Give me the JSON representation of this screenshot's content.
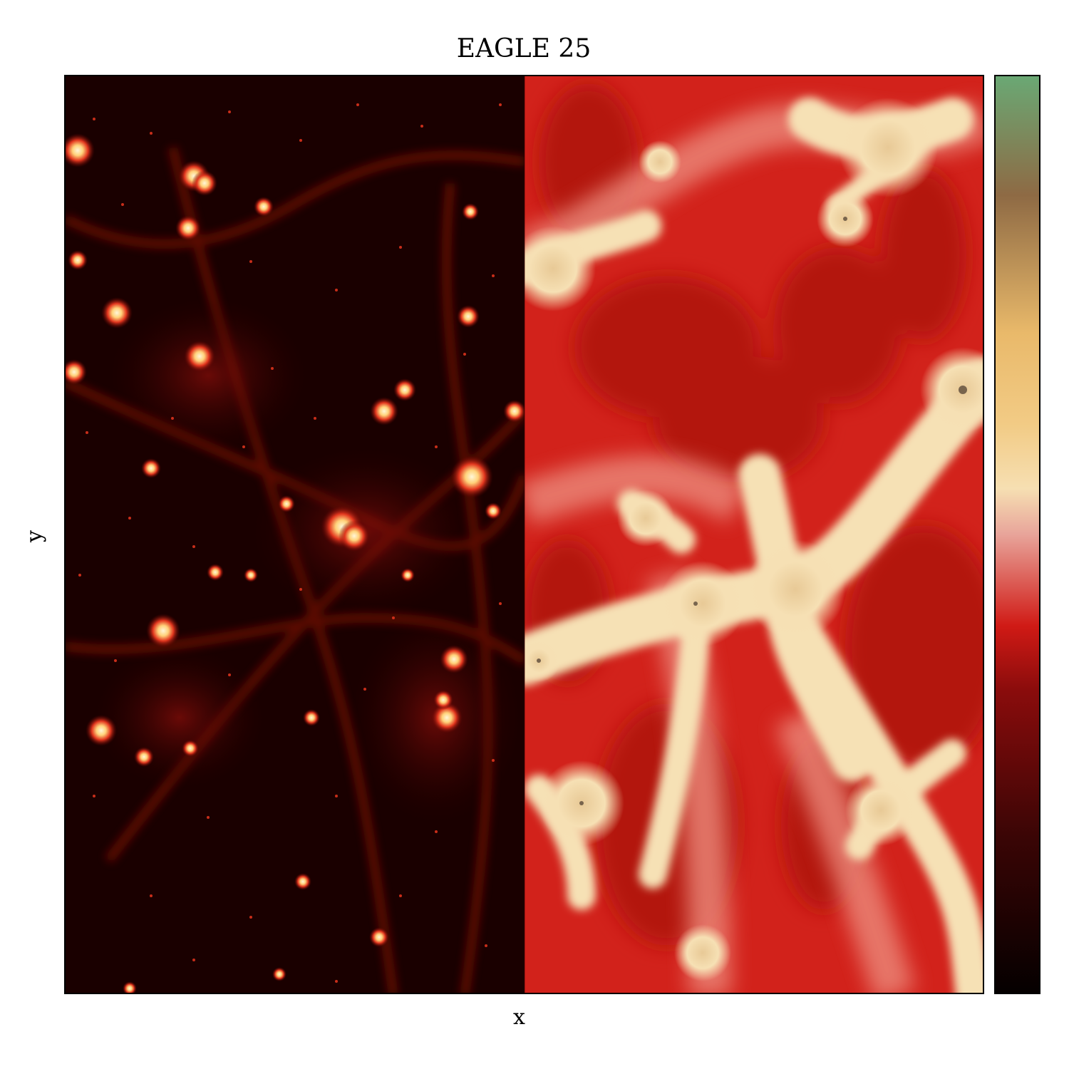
{
  "figure": {
    "title": "EAGLE 25",
    "xlabel": "x",
    "ylabel": "y"
  },
  "panels": [
    {
      "name": "left-density-map",
      "description_colormap": "black-red-yellow"
    },
    {
      "name": "right-density-map",
      "description_colormap": "red-cream"
    }
  ],
  "colorbar": {
    "colors": [
      "#050000",
      "#3a0505",
      "#8a0c0c",
      "#d01a15",
      "#e8a49a",
      "#f6dfb2",
      "#f2cb85",
      "#e9b96a",
      "#8e6a44",
      "#6aa874"
    ]
  }
}
